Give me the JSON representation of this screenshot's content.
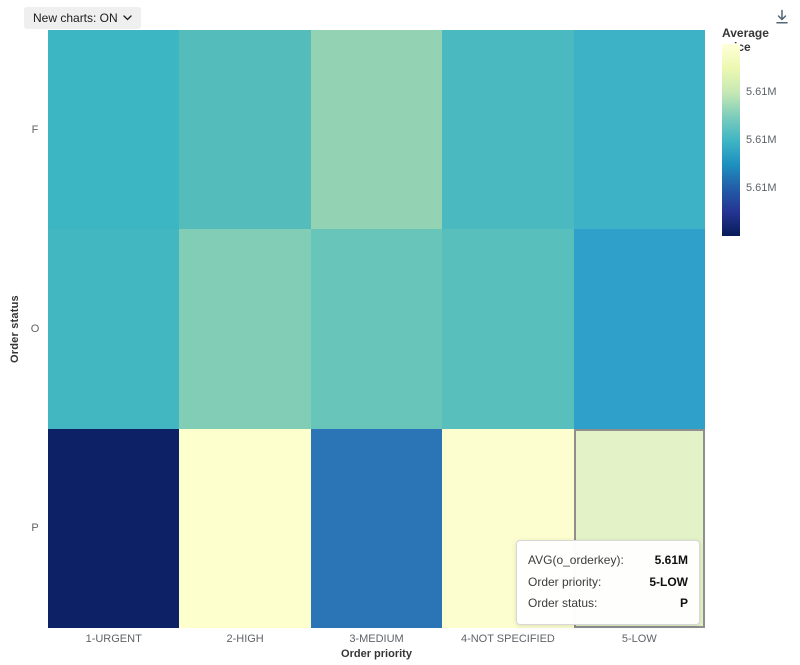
{
  "toolbar": {
    "new_charts_label": "New charts: ON"
  },
  "chart_data": {
    "type": "heatmap",
    "metric": "AVG(o_orderkey)",
    "xlabel": "Order priority",
    "ylabel": "Order status",
    "x_categories": [
      "1-URGENT",
      "2-HIGH",
      "3-MEDIUM",
      "4-NOT SPECIFIED",
      "5-LOW"
    ],
    "y_categories": [
      "F",
      "O",
      "P"
    ],
    "value_display": "5.61M",
    "legend": {
      "title": "Average price",
      "tick_labels": [
        "5.61M",
        "5.61M",
        "5.61M"
      ],
      "gradient_stops": [
        "#ffffd9",
        "#edf8b1",
        "#c7e9b4",
        "#7fcdbb",
        "#41b6c4",
        "#1d91c0",
        "#225ea8",
        "#253494",
        "#081d58"
      ]
    },
    "cells": [
      {
        "y": "F",
        "x": "1-URGENT",
        "value": "5.61M",
        "color": "#3db6c4",
        "highlighted": false
      },
      {
        "y": "F",
        "x": "2-HIGH",
        "value": "5.61M",
        "color": "#54bdbc",
        "highlighted": false
      },
      {
        "y": "F",
        "x": "3-MEDIUM",
        "value": "5.61M",
        "color": "#93d3b3",
        "highlighted": false
      },
      {
        "y": "F",
        "x": "4-NOT SPECIFIED",
        "value": "5.61M",
        "color": "#4bbac0",
        "highlighted": false
      },
      {
        "y": "F",
        "x": "5-LOW",
        "value": "5.61M",
        "color": "#3db2c7",
        "highlighted": false
      },
      {
        "y": "O",
        "x": "1-URGENT",
        "value": "5.61M",
        "color": "#42b7c2",
        "highlighted": false
      },
      {
        "y": "O",
        "x": "2-HIGH",
        "value": "5.61M",
        "color": "#82cdb5",
        "highlighted": false
      },
      {
        "y": "O",
        "x": "3-MEDIUM",
        "value": "5.61M",
        "color": "#68c5b9",
        "highlighted": false
      },
      {
        "y": "O",
        "x": "4-NOT SPECIFIED",
        "value": "5.61M",
        "color": "#58bfbc",
        "highlighted": false
      },
      {
        "y": "O",
        "x": "5-LOW",
        "value": "5.61M",
        "color": "#2fa0c9",
        "highlighted": false
      },
      {
        "y": "P",
        "x": "1-URGENT",
        "value": "5.61M",
        "color": "#0c2166",
        "highlighted": false
      },
      {
        "y": "P",
        "x": "2-HIGH",
        "value": "5.61M",
        "color": "#fdffcc",
        "highlighted": false
      },
      {
        "y": "P",
        "x": "3-MEDIUM",
        "value": "5.61M",
        "color": "#2b74b5",
        "highlighted": false
      },
      {
        "y": "P",
        "x": "4-NOT SPECIFIED",
        "value": "5.61M",
        "color": "#fcfecf",
        "highlighted": false
      },
      {
        "y": "P",
        "x": "5-LOW",
        "value": "5.61M",
        "color": "#e3f3c7",
        "highlighted": true
      }
    ]
  },
  "tooltip": {
    "rows": [
      {
        "label": "AVG(o_orderkey):",
        "value": "5.61M"
      },
      {
        "label": "Order priority:",
        "value": "5-LOW"
      },
      {
        "label": "Order status:",
        "value": "P"
      }
    ]
  }
}
